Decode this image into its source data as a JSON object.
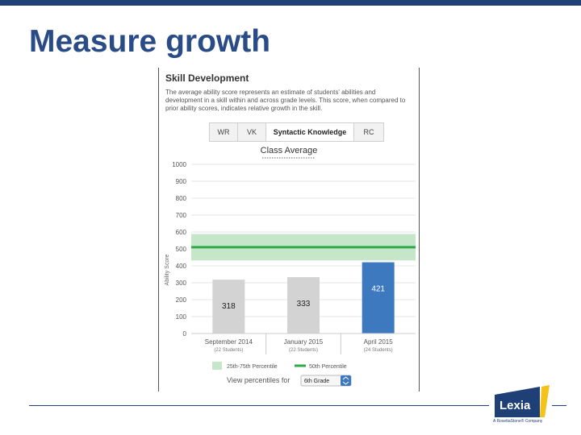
{
  "slide": {
    "title": "Measure growth"
  },
  "panel": {
    "title": "Skill Development",
    "description": "The average ability score represents an estimate of students' abilities and development in a skill within and across grade levels. This score, when compared to prior ability scores, indicates relative growth in the skill.",
    "tabs": [
      {
        "label": "WR",
        "active": false
      },
      {
        "label": "VK",
        "active": false
      },
      {
        "label": "Syntactic Knowledge",
        "active": true
      },
      {
        "label": "RC",
        "active": false
      }
    ]
  },
  "chart_data": {
    "type": "bar",
    "title": "Class Average",
    "ylabel": "Ability Score",
    "ylim": [
      0,
      1000
    ],
    "yticks": [
      0,
      100,
      200,
      300,
      400,
      500,
      600,
      700,
      800,
      900,
      1000
    ],
    "categories": [
      "September 2014",
      "January 2015",
      "April 2015"
    ],
    "subcategories": [
      "(22 Students)",
      "(22 Students)",
      "(24 Students)"
    ],
    "values": [
      318,
      333,
      421
    ],
    "bar_colors": [
      "#d3d3d3",
      "#d3d3d3",
      "#3d79bf"
    ],
    "percentile_band": [
      432,
      588
    ],
    "median_line": 510,
    "legend": [
      {
        "label": "25th-75th Percentile",
        "color": "#c5e6c9"
      },
      {
        "label": "50th Percentile",
        "color": "#2faa4a"
      }
    ],
    "grid": true
  },
  "percentile_selector": {
    "label": "View percentiles for",
    "value": "6th Grade"
  },
  "branding": {
    "logo": "Lexia",
    "tagline": "A RosettaStone® Company"
  }
}
